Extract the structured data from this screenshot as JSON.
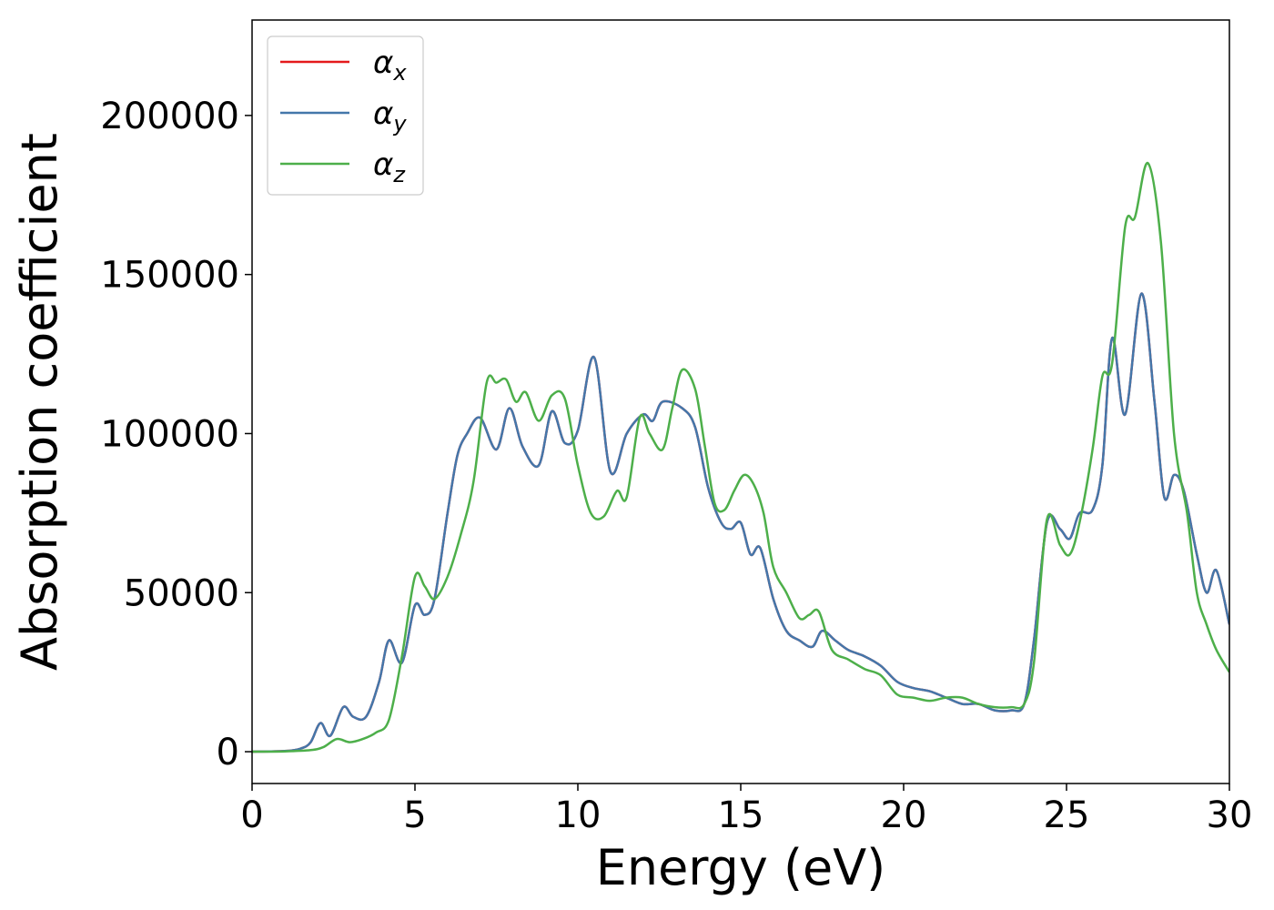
{
  "chart_data": {
    "type": "line",
    "title": "",
    "xlabel": "Energy (eV)",
    "ylabel": "Absorption coefficient",
    "xlim": [
      0,
      30
    ],
    "ylim": [
      -10000,
      230000
    ],
    "xticks": [
      0,
      5,
      10,
      15,
      20,
      25,
      30
    ],
    "yticks": [
      0,
      50000,
      100000,
      150000,
      200000
    ],
    "xtick_labels": [
      "0",
      "5",
      "10",
      "15",
      "20",
      "25",
      "30"
    ],
    "ytick_labels": [
      "0",
      "50000",
      "100000",
      "150000",
      "200000"
    ],
    "grid": false,
    "legend_position": "top-left",
    "series": [
      {
        "name": "α_x",
        "symbol": "α",
        "subscript": "x",
        "color": "#e41a1c",
        "x": [
          0,
          1,
          1.5,
          1.8,
          2.1,
          2.4,
          2.8,
          3.1,
          3.5,
          3.9,
          4.2,
          4.6,
          5.0,
          5.3,
          5.6,
          6.0,
          6.3,
          6.6,
          7.0,
          7.5,
          7.9,
          8.3,
          8.8,
          9.2,
          9.6,
          10.0,
          10.5,
          11.0,
          11.5,
          12.0,
          12.3,
          12.6,
          13.2,
          13.6,
          14.0,
          14.4,
          14.7,
          15.0,
          15.3,
          15.6,
          16.0,
          16.4,
          16.8,
          17.2,
          17.5,
          17.9,
          18.3,
          18.8,
          19.3,
          19.8,
          20.3,
          20.8,
          21.3,
          21.8,
          22.3,
          22.8,
          23.3,
          23.7,
          24.0,
          24.4,
          24.8,
          25.1,
          25.4,
          25.8,
          26.1,
          26.4,
          26.8,
          27.3,
          27.7,
          28.0,
          28.3,
          28.6,
          29.0,
          29.3,
          29.6,
          30.0
        ],
        "y": [
          0,
          200,
          1000,
          3000,
          9000,
          5000,
          14000,
          11000,
          11000,
          22000,
          35000,
          28000,
          46000,
          43000,
          48000,
          75000,
          93000,
          100000,
          105000,
          95000,
          108000,
          96000,
          90000,
          107000,
          97000,
          101000,
          124000,
          88000,
          100000,
          106000,
          104000,
          110000,
          108000,
          102000,
          83000,
          72000,
          70000,
          72000,
          62000,
          64000,
          48000,
          38000,
          35000,
          33000,
          38000,
          35000,
          32000,
          30000,
          27000,
          22000,
          20000,
          19000,
          17000,
          15000,
          15000,
          13000,
          13000,
          15000,
          35000,
          72000,
          70000,
          67000,
          75000,
          76000,
          90000,
          130000,
          106000,
          144000,
          110000,
          80000,
          87000,
          82000,
          62000,
          50000,
          57000,
          40000
        ]
      },
      {
        "name": "α_y",
        "symbol": "α",
        "subscript": "y",
        "color": "#4477aa",
        "x": [
          0,
          1,
          1.5,
          1.8,
          2.1,
          2.4,
          2.8,
          3.1,
          3.5,
          3.9,
          4.2,
          4.6,
          5.0,
          5.3,
          5.6,
          6.0,
          6.3,
          6.6,
          7.0,
          7.5,
          7.9,
          8.3,
          8.8,
          9.2,
          9.6,
          10.0,
          10.5,
          11.0,
          11.5,
          12.0,
          12.3,
          12.6,
          13.2,
          13.6,
          14.0,
          14.4,
          14.7,
          15.0,
          15.3,
          15.6,
          16.0,
          16.4,
          16.8,
          17.2,
          17.5,
          17.9,
          18.3,
          18.8,
          19.3,
          19.8,
          20.3,
          20.8,
          21.3,
          21.8,
          22.3,
          22.8,
          23.3,
          23.7,
          24.0,
          24.4,
          24.8,
          25.1,
          25.4,
          25.8,
          26.1,
          26.4,
          26.8,
          27.3,
          27.7,
          28.0,
          28.3,
          28.6,
          29.0,
          29.3,
          29.6,
          30.0
        ],
        "y": [
          0,
          200,
          1000,
          3000,
          9000,
          5000,
          14000,
          11000,
          11000,
          22000,
          35000,
          28000,
          46000,
          43000,
          48000,
          75000,
          93000,
          100000,
          105000,
          95000,
          108000,
          96000,
          90000,
          107000,
          97000,
          101000,
          124000,
          88000,
          100000,
          106000,
          104000,
          110000,
          108000,
          102000,
          83000,
          72000,
          70000,
          72000,
          62000,
          64000,
          48000,
          38000,
          35000,
          33000,
          38000,
          35000,
          32000,
          30000,
          27000,
          22000,
          20000,
          19000,
          17000,
          15000,
          15000,
          13000,
          13000,
          15000,
          35000,
          72000,
          70000,
          67000,
          75000,
          76000,
          90000,
          130000,
          106000,
          144000,
          110000,
          80000,
          87000,
          82000,
          62000,
          50000,
          57000,
          40000
        ]
      },
      {
        "name": "α_z",
        "symbol": "α",
        "subscript": "z",
        "color": "#4daf4a",
        "x": [
          0,
          1,
          1.8,
          2.2,
          2.6,
          3.0,
          3.4,
          3.8,
          4.2,
          4.6,
          5.0,
          5.3,
          5.6,
          6.0,
          6.4,
          6.8,
          7.2,
          7.5,
          7.8,
          8.1,
          8.4,
          8.8,
          9.2,
          9.6,
          10.0,
          10.4,
          10.8,
          11.2,
          11.5,
          11.9,
          12.2,
          12.6,
          12.9,
          13.2,
          13.6,
          13.9,
          14.2,
          14.5,
          14.8,
          15.1,
          15.4,
          15.7,
          16.0,
          16.4,
          16.8,
          17.1,
          17.4,
          17.8,
          18.3,
          18.8,
          19.3,
          19.8,
          20.3,
          20.8,
          21.3,
          21.8,
          22.3,
          22.8,
          23.3,
          23.7,
          24.0,
          24.4,
          24.8,
          25.1,
          25.4,
          25.8,
          26.1,
          26.4,
          26.8,
          27.1,
          27.5,
          27.9,
          28.3,
          28.7,
          29.0,
          29.3,
          29.6,
          30.0
        ],
        "y": [
          0,
          100,
          500,
          1500,
          4000,
          3000,
          4000,
          6000,
          10000,
          30000,
          55000,
          52000,
          48000,
          55000,
          68000,
          85000,
          116000,
          116000,
          117000,
          110000,
          113000,
          104000,
          112000,
          111000,
          90000,
          75000,
          74000,
          82000,
          80000,
          105000,
          100000,
          95000,
          108000,
          120000,
          114000,
          96000,
          78000,
          76000,
          82000,
          87000,
          84000,
          75000,
          58000,
          50000,
          42000,
          43000,
          44000,
          32000,
          29000,
          26000,
          24000,
          18000,
          17000,
          16000,
          17000,
          17000,
          15000,
          14000,
          14000,
          15000,
          28000,
          73000,
          65000,
          62000,
          72000,
          95000,
          118000,
          122000,
          165000,
          168000,
          185000,
          160000,
          100000,
          75000,
          50000,
          40000,
          32000,
          25000
        ]
      }
    ]
  }
}
